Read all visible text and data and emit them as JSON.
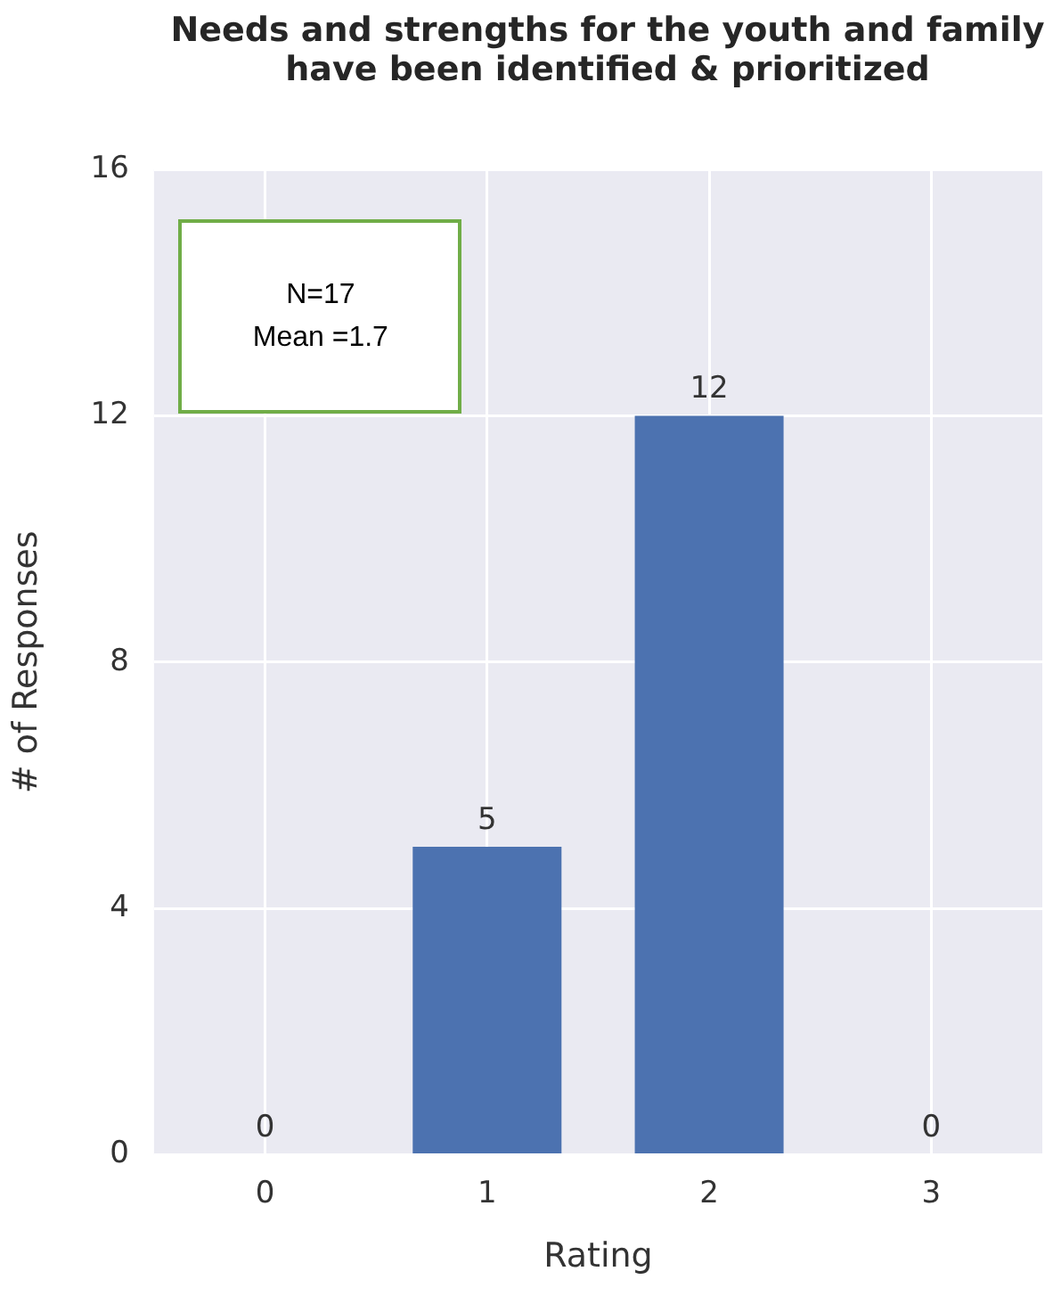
{
  "chart_data": {
    "type": "bar",
    "title": "Needs and strengths for the youth and family have been identified & prioritized",
    "xlabel": "Rating",
    "ylabel": "# of Responses",
    "categories": [
      "0",
      "1",
      "2",
      "3"
    ],
    "values": [
      0,
      5,
      12,
      0
    ],
    "color": "#4c72b0",
    "ylim": [
      0,
      16
    ],
    "yticks": [
      0,
      4,
      8,
      12,
      16
    ],
    "grid": true,
    "data_labels": true,
    "annotations": [
      "N=17",
      "Mean =1.7"
    ]
  }
}
